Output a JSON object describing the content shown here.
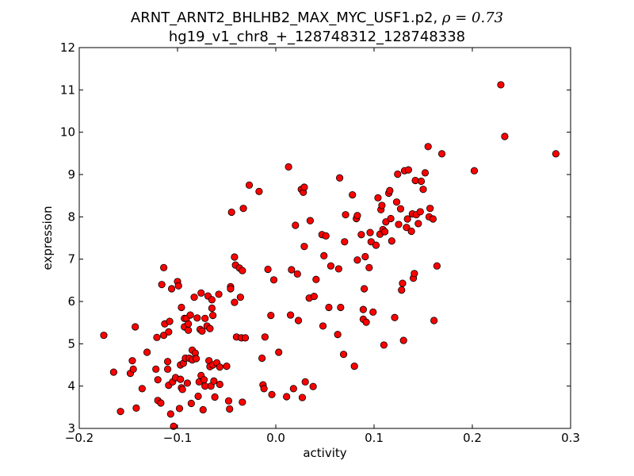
{
  "chart_data": {
    "type": "scatter",
    "title_line1": "ARNT_ARNT2_BHLHB2_MAX_MYC_USF1.p2, ",
    "title_rho": "ρ = 0.73",
    "title_line2": "hg19_v1_chr8_+_128748312_128748338",
    "xlabel": "activity",
    "ylabel": "expression",
    "xlim": [
      -0.2,
      0.3
    ],
    "ylim": [
      3,
      12
    ],
    "xticks": [
      "−0.2",
      "−0.1",
      "0.0",
      "0.1",
      "0.2",
      "0.3"
    ],
    "xtick_values": [
      -0.2,
      -0.1,
      0.0,
      0.1,
      0.2,
      0.3
    ],
    "yticks": [
      "3",
      "4",
      "5",
      "6",
      "7",
      "8",
      "9",
      "10",
      "11",
      "12"
    ],
    "ytick_values": [
      3,
      4,
      5,
      6,
      7,
      8,
      9,
      10,
      11,
      12
    ],
    "grid": false,
    "legend": "none",
    "marker_color": "#ff0000",
    "marker_edge_color": "#000000",
    "points": [
      [
        -0.175,
        5.2
      ],
      [
        -0.165,
        4.33
      ],
      [
        -0.158,
        3.4
      ],
      [
        -0.148,
        4.3
      ],
      [
        -0.146,
        4.6
      ],
      [
        -0.145,
        4.4
      ],
      [
        -0.143,
        5.4
      ],
      [
        -0.142,
        3.48
      ],
      [
        -0.136,
        3.94
      ],
      [
        -0.131,
        4.8
      ],
      [
        -0.122,
        4.4
      ],
      [
        -0.121,
        5.15
      ],
      [
        -0.12,
        3.66
      ],
      [
        -0.12,
        4.15
      ],
      [
        -0.117,
        3.6
      ],
      [
        -0.116,
        6.4
      ],
      [
        -0.114,
        6.8
      ],
      [
        -0.114,
        5.2
      ],
      [
        -0.113,
        5.47
      ],
      [
        -0.11,
        4.58
      ],
      [
        -0.11,
        4.4
      ],
      [
        -0.109,
        5.28
      ],
      [
        -0.109,
        4.02
      ],
      [
        -0.108,
        5.53
      ],
      [
        -0.107,
        3.34
      ],
      [
        -0.106,
        6.3
      ],
      [
        -0.105,
        4.1
      ],
      [
        -0.104,
        3.05
      ],
      [
        -0.102,
        4.2
      ],
      [
        -0.1,
        6.47
      ],
      [
        -0.099,
        6.37
      ],
      [
        -0.098,
        3.47
      ],
      [
        -0.097,
        4.5
      ],
      [
        -0.097,
        4.16
      ],
      [
        -0.096,
        5.86
      ],
      [
        -0.096,
        3.96
      ],
      [
        -0.095,
        3.92
      ],
      [
        -0.094,
        4.54
      ],
      [
        -0.093,
        5.4
      ],
      [
        -0.093,
        5.6
      ],
      [
        -0.092,
        4.66
      ],
      [
        -0.091,
        5.6
      ],
      [
        -0.09,
        4.07
      ],
      [
        -0.089,
        5.32
      ],
      [
        -0.089,
        5.47
      ],
      [
        -0.088,
        4.66
      ],
      [
        -0.087,
        5.68
      ],
      [
        -0.086,
        3.59
      ],
      [
        -0.085,
        4.85
      ],
      [
        -0.085,
        4.62
      ],
      [
        -0.083,
        6.1
      ],
      [
        -0.082,
        4.78
      ],
      [
        -0.081,
        4.65
      ],
      [
        -0.08,
        5.61
      ],
      [
        -0.079,
        3.76
      ],
      [
        -0.078,
        4.1
      ],
      [
        -0.077,
        5.34
      ],
      [
        -0.076,
        4.25
      ],
      [
        -0.076,
        6.2
      ],
      [
        -0.075,
        5.3
      ],
      [
        -0.074,
        3.44
      ],
      [
        -0.073,
        4.15
      ],
      [
        -0.072,
        4.0
      ],
      [
        -0.072,
        5.6
      ],
      [
        -0.07,
        5.42
      ],
      [
        -0.069,
        6.13
      ],
      [
        -0.068,
        4.6
      ],
      [
        -0.067,
        4.46
      ],
      [
        -0.067,
        5.36
      ],
      [
        -0.066,
        4.0
      ],
      [
        -0.065,
        6.04
      ],
      [
        -0.065,
        5.84
      ],
      [
        -0.064,
        5.67
      ],
      [
        -0.064,
        4.5
      ],
      [
        -0.063,
        4.12
      ],
      [
        -0.062,
        3.74
      ],
      [
        -0.06,
        4.55
      ],
      [
        -0.058,
        6.17
      ],
      [
        -0.057,
        4.45
      ],
      [
        -0.057,
        4.04
      ],
      [
        -0.05,
        4.47
      ],
      [
        -0.048,
        3.65
      ],
      [
        -0.047,
        3.46
      ],
      [
        -0.046,
        6.35
      ],
      [
        -0.046,
        6.3
      ],
      [
        -0.045,
        8.11
      ],
      [
        -0.042,
        5.98
      ],
      [
        -0.042,
        7.05
      ],
      [
        -0.041,
        6.86
      ],
      [
        -0.04,
        5.16
      ],
      [
        -0.037,
        6.79
      ],
      [
        -0.036,
        6.1
      ],
      [
        -0.035,
        5.14
      ],
      [
        -0.034,
        6.73
      ],
      [
        -0.034,
        3.62
      ],
      [
        -0.033,
        8.2
      ],
      [
        -0.031,
        5.14
      ],
      [
        -0.027,
        8.75
      ],
      [
        -0.017,
        8.6
      ],
      [
        -0.014,
        4.66
      ],
      [
        -0.013,
        4.03
      ],
      [
        -0.012,
        3.94
      ],
      [
        -0.011,
        5.16
      ],
      [
        -0.008,
        6.76
      ],
      [
        -0.005,
        5.67
      ],
      [
        -0.004,
        3.8
      ],
      [
        -0.002,
        6.51
      ],
      [
        0.003,
        4.8
      ],
      [
        0.011,
        3.75
      ],
      [
        0.013,
        9.18
      ],
      [
        0.015,
        5.68
      ],
      [
        0.016,
        6.75
      ],
      [
        0.018,
        3.94
      ],
      [
        0.02,
        7.8
      ],
      [
        0.022,
        6.65
      ],
      [
        0.023,
        5.55
      ],
      [
        0.026,
        8.65
      ],
      [
        0.027,
        3.73
      ],
      [
        0.028,
        8.58
      ],
      [
        0.029,
        8.7
      ],
      [
        0.029,
        7.3
      ],
      [
        0.03,
        4.1
      ],
      [
        0.034,
        6.08
      ],
      [
        0.035,
        7.91
      ],
      [
        0.038,
        3.99
      ],
      [
        0.039,
        6.12
      ],
      [
        0.041,
        6.52
      ],
      [
        0.047,
        7.58
      ],
      [
        0.048,
        5.42
      ],
      [
        0.049,
        7.08
      ],
      [
        0.051,
        7.55
      ],
      [
        0.054,
        5.86
      ],
      [
        0.056,
        6.84
      ],
      [
        0.063,
        5.22
      ],
      [
        0.064,
        6.77
      ],
      [
        0.065,
        8.92
      ],
      [
        0.066,
        5.86
      ],
      [
        0.069,
        4.75
      ],
      [
        0.07,
        7.41
      ],
      [
        0.071,
        8.05
      ],
      [
        0.078,
        8.52
      ],
      [
        0.08,
        4.47
      ],
      [
        0.082,
        7.96
      ],
      [
        0.083,
        6.98
      ],
      [
        0.083,
        8.03
      ],
      [
        0.087,
        7.58
      ],
      [
        0.089,
        5.81
      ],
      [
        0.089,
        5.58
      ],
      [
        0.09,
        6.3
      ],
      [
        0.091,
        7.06
      ],
      [
        0.092,
        5.51
      ],
      [
        0.095,
        6.8
      ],
      [
        0.096,
        7.63
      ],
      [
        0.097,
        7.41
      ],
      [
        0.099,
        5.75
      ],
      [
        0.102,
        7.33
      ],
      [
        0.104,
        8.45
      ],
      [
        0.106,
        7.59
      ],
      [
        0.107,
        8.17
      ],
      [
        0.108,
        8.27
      ],
      [
        0.109,
        7.7
      ],
      [
        0.11,
        4.97
      ],
      [
        0.111,
        7.65
      ],
      [
        0.112,
        7.88
      ],
      [
        0.115,
        8.56
      ],
      [
        0.116,
        8.62
      ],
      [
        0.117,
        7.96
      ],
      [
        0.118,
        7.43
      ],
      [
        0.121,
        5.62
      ],
      [
        0.123,
        8.35
      ],
      [
        0.124,
        9.01
      ],
      [
        0.125,
        7.82
      ],
      [
        0.127,
        8.19
      ],
      [
        0.128,
        6.27
      ],
      [
        0.129,
        6.43
      ],
      [
        0.13,
        5.08
      ],
      [
        0.131,
        9.09
      ],
      [
        0.133,
        7.75
      ],
      [
        0.134,
        7.95
      ],
      [
        0.135,
        9.11
      ],
      [
        0.138,
        7.66
      ],
      [
        0.139,
        8.07
      ],
      [
        0.14,
        6.55
      ],
      [
        0.141,
        6.66
      ],
      [
        0.142,
        8.86
      ],
      [
        0.143,
        8.05
      ],
      [
        0.145,
        7.84
      ],
      [
        0.147,
        8.12
      ],
      [
        0.148,
        8.84
      ],
      [
        0.15,
        8.65
      ],
      [
        0.152,
        9.04
      ],
      [
        0.155,
        9.66
      ],
      [
        0.156,
        8.0
      ],
      [
        0.157,
        8.2
      ],
      [
        0.16,
        7.95
      ],
      [
        0.161,
        5.55
      ],
      [
        0.164,
        6.84
      ],
      [
        0.169,
        9.49
      ],
      [
        0.202,
        9.09
      ],
      [
        0.229,
        11.12
      ],
      [
        0.233,
        9.9
      ],
      [
        0.285,
        9.49
      ]
    ]
  }
}
